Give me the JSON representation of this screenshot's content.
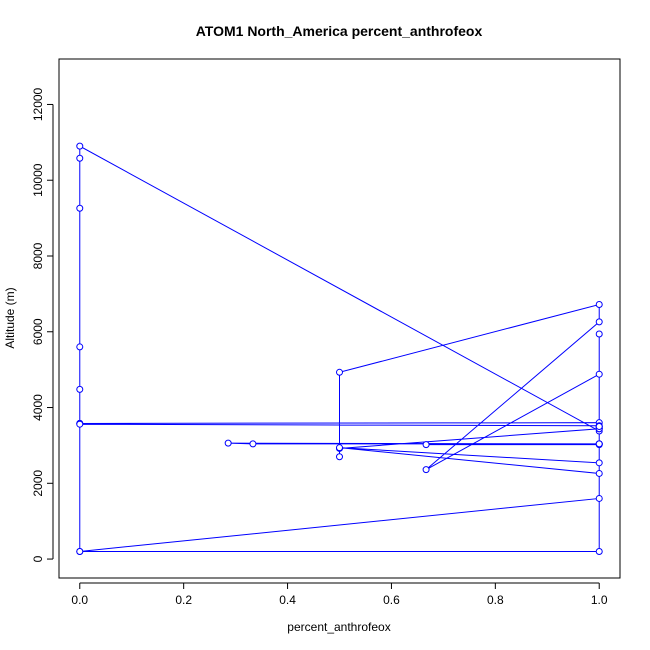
{
  "chart_data": {
    "type": "line",
    "title": "ATOM1 North_America percent_anthrofeox",
    "xlabel": "percent_anthrofeox",
    "ylabel": "Altitude (m)",
    "xlim": [
      -0.04,
      1.04
    ],
    "ylim": [
      -500,
      13200
    ],
    "x_ticks": [
      0.0,
      0.2,
      0.4,
      0.6,
      0.8,
      1.0
    ],
    "x_tick_labels": [
      "0.0",
      "0.2",
      "0.4",
      "0.6",
      "0.8",
      "1.0"
    ],
    "y_ticks": [
      0,
      2000,
      4000,
      6000,
      8000,
      10000,
      12000
    ],
    "y_tick_labels": [
      "0",
      "2000",
      "4000",
      "6000",
      "8000",
      "10000",
      "12000"
    ],
    "grid": false,
    "series": [
      {
        "color": "#0000ff",
        "marker": "open-circle",
        "x": [
          0,
          0,
          0,
          0,
          0,
          0,
          0,
          1,
          1,
          1,
          1,
          1,
          0,
          0,
          1,
          1,
          1,
          0.5,
          0.5,
          0.5,
          1,
          1,
          0.6667,
          1,
          1,
          1,
          0.3333,
          0.2857,
          1,
          1,
          1,
          0.6667,
          1,
          1,
          0.5,
          1,
          1,
          0,
          1,
          1
        ],
        "y": [
          200,
          3580,
          4480,
          5600,
          9260,
          10580,
          10900,
          3380,
          3500,
          3440,
          3440,
          3600,
          3580,
          3560,
          3520,
          3480,
          3440,
          2920,
          2700,
          4930,
          6720,
          6260,
          2360,
          4880,
          5940,
          3040,
          3040,
          3060,
          3040,
          3040,
          3020,
          3020,
          3040,
          2540,
          2940,
          2260,
          1600,
          200,
          200,
          3500
        ]
      }
    ]
  }
}
